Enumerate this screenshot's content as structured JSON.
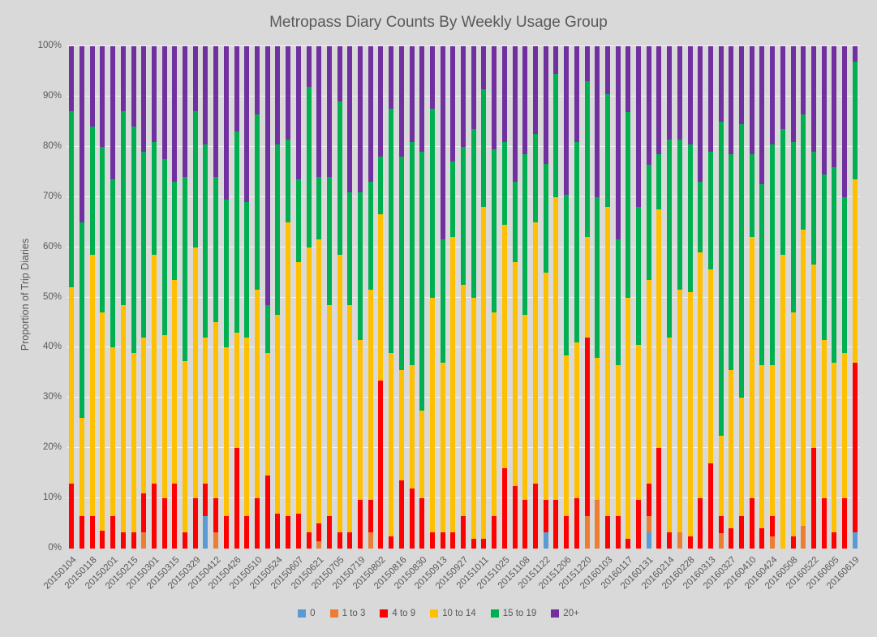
{
  "title": "Metropass Diary Counts By Weekly Usage Group",
  "y_axis": {
    "title": "Proportion of Trip Diaries",
    "ticks": [
      "0%",
      "10%",
      "20%",
      "30%",
      "40%",
      "50%",
      "60%",
      "70%",
      "80%",
      "90%",
      "100%"
    ]
  },
  "legend": [
    {
      "label": "0",
      "color": "#5B9BD5"
    },
    {
      "label": "1 to 3",
      "color": "#ED7D31"
    },
    {
      "label": "4 to 9",
      "color": "#FF0000"
    },
    {
      "label": "10 to 14",
      "color": "#FFC000"
    },
    {
      "label": "15 to 19",
      "color": "#00B050"
    },
    {
      "label": "20+",
      "color": "#7030A0"
    }
  ],
  "colors": {
    "background": "#D9D9D9",
    "gridline": "#FFFFFF",
    "text": "#595959"
  },
  "chart_data": {
    "type": "bar",
    "stacked": true,
    "units": "percent",
    "ylim": [
      0,
      100
    ],
    "grid": true,
    "legend_position": "bottom",
    "x_label_rotation": -45,
    "x_labels_every": 2,
    "categories": [
      "20150104",
      "20150111",
      "20150118",
      "20150125",
      "20150201",
      "20150208",
      "20150215",
      "20150222",
      "20150301",
      "20150308",
      "20150315",
      "20150322",
      "20150329",
      "20150405",
      "20150412",
      "20150419",
      "20150426",
      "20150503",
      "20150510",
      "20150517",
      "20150524",
      "20150531",
      "20150607",
      "20150614",
      "20150621",
      "20150628",
      "20150705",
      "20150712",
      "20150719",
      "20150726",
      "20150802",
      "20150809",
      "20150816",
      "20150823",
      "20150830",
      "20150906",
      "20150913",
      "20150920",
      "20150927",
      "20151004",
      "20151011",
      "20151018",
      "20151025",
      "20151101",
      "20151108",
      "20151115",
      "20151122",
      "20151129",
      "20151206",
      "20151213",
      "20151220",
      "20151227",
      "20160103",
      "20160110",
      "20160117",
      "20160124",
      "20160131",
      "20160207",
      "20160214",
      "20160221",
      "20160228",
      "20160306",
      "20160313",
      "20160320",
      "20160327",
      "20160403",
      "20160410",
      "20160417",
      "20160424",
      "20160501",
      "20160508",
      "20160515",
      "20160522",
      "20160529",
      "20160605",
      "20160612",
      "20160619"
    ],
    "series": [
      {
        "name": "0",
        "color": "#5B9BD5",
        "values": [
          0,
          0,
          0,
          0,
          0,
          0,
          0,
          0,
          0,
          0,
          0,
          0,
          0,
          6.5,
          0,
          0,
          0,
          0,
          0,
          0,
          0,
          0,
          0,
          0,
          0,
          0,
          0,
          0,
          0,
          0,
          0,
          0,
          0,
          0,
          0,
          0,
          0,
          0,
          0,
          0,
          0,
          0,
          0,
          0,
          0,
          0,
          3.2,
          0,
          0,
          0,
          0,
          0,
          0,
          0,
          0,
          0,
          3.2,
          0,
          0,
          0,
          0,
          0,
          0,
          0,
          0,
          0,
          0,
          0,
          0,
          0,
          0,
          0,
          0,
          0,
          0,
          0,
          3.2
        ]
      },
      {
        "name": "1 to 3",
        "color": "#ED7D31",
        "values": [
          0,
          0,
          0,
          0,
          0,
          0,
          0,
          3.2,
          0,
          0,
          0,
          0,
          0,
          0,
          3.2,
          0,
          0,
          0,
          0,
          0,
          0,
          0,
          0,
          0,
          1.5,
          0,
          0,
          0,
          0,
          3.2,
          0,
          0,
          0,
          0,
          0,
          0,
          0,
          0,
          0,
          0,
          0,
          0,
          0,
          0,
          0,
          0,
          0,
          0,
          0,
          0,
          6.5,
          9.7,
          0,
          0,
          0,
          0,
          3.3,
          0,
          0,
          3.2,
          0,
          0,
          0,
          3,
          0,
          0,
          0,
          0,
          2.5,
          0,
          0,
          4.5,
          0,
          0,
          0,
          0,
          0
        ]
      },
      {
        "name": "4 to 9",
        "color": "#FF0000",
        "values": [
          13,
          6.5,
          6.5,
          3.5,
          6.5,
          3.2,
          3.2,
          7.8,
          13,
          10,
          13,
          3.2,
          10,
          6.5,
          6.8,
          6.5,
          20,
          6.5,
          10,
          14.5,
          7,
          6.5,
          7,
          3.2,
          3.5,
          6.5,
          3.2,
          3.2,
          9.7,
          6.5,
          33.5,
          2.5,
          13.5,
          12,
          10,
          3.2,
          3.2,
          3.2,
          6.5,
          2,
          2,
          6.5,
          16,
          12.5,
          9.7,
          13,
          6.5,
          9.7,
          6.5,
          10,
          35.5,
          0,
          6.5,
          6.5,
          2,
          9.7,
          6.5,
          20,
          3.2,
          0,
          2.5,
          10,
          17,
          3.5,
          4,
          6.5,
          10,
          4,
          4,
          0,
          2.5,
          0,
          20,
          10,
          3.2,
          10,
          33.8
        ]
      },
      {
        "name": "10 to 14",
        "color": "#FFC000",
        "values": [
          39,
          19.5,
          52,
          43.5,
          33.5,
          45.3,
          35.8,
          31,
          45.5,
          32.5,
          40.5,
          34.1,
          50,
          29,
          35,
          33.5,
          23,
          35.5,
          41.5,
          24.5,
          39.5,
          58.5,
          50,
          56.8,
          56.5,
          42,
          55.3,
          45.3,
          31.8,
          41.8,
          33,
          36.5,
          22,
          24.5,
          17.5,
          46.8,
          33.8,
          58.8,
          46,
          48,
          66,
          40.5,
          48.5,
          44.5,
          36.8,
          52,
          45.3,
          60.3,
          32,
          31,
          20,
          28.3,
          61.5,
          30,
          48,
          30.8,
          40.5,
          47.5,
          38.8,
          48.3,
          48.5,
          49,
          38.5,
          16,
          31.5,
          23.5,
          52,
          32.5,
          30,
          58.5,
          44.5,
          59,
          36.5,
          31.5,
          33.8,
          29,
          36.5
        ]
      },
      {
        "name": "15 to 19",
        "color": "#00B050",
        "values": [
          35,
          39,
          25.5,
          33,
          33.5,
          38.5,
          45,
          37,
          22.5,
          35,
          19.5,
          36.7,
          27,
          38.5,
          29,
          29.5,
          40,
          27,
          35,
          9.5,
          34,
          16.5,
          16.5,
          32,
          12.5,
          25.5,
          30.5,
          22.5,
          29.5,
          21.5,
          11.5,
          48.5,
          42.5,
          44.5,
          51.5,
          37.5,
          24.5,
          15,
          27.5,
          33.5,
          23.5,
          32.5,
          16.5,
          16,
          32,
          17.5,
          21.5,
          24.5,
          32,
          40,
          31,
          32,
          22.5,
          25,
          37,
          27.5,
          23,
          11,
          39.5,
          30,
          29.5,
          14,
          23.5,
          62.5,
          43,
          54.5,
          16.5,
          36,
          44,
          25,
          34,
          23,
          22.5,
          33,
          39,
          31,
          23.5
        ]
      },
      {
        "name": "20+",
        "color": "#7030A0",
        "values": [
          13,
          35,
          16,
          20,
          26.5,
          13,
          16,
          21,
          19,
          22.5,
          27,
          26,
          13,
          19.5,
          26,
          30.5,
          17,
          31,
          13.5,
          51.5,
          19.5,
          18.5,
          26.5,
          8,
          26,
          26,
          11,
          29,
          29,
          27,
          22,
          12.5,
          22,
          19,
          21,
          12.5,
          38.5,
          23,
          20,
          16.5,
          8.5,
          20.5,
          19,
          27,
          21.5,
          17.5,
          23.5,
          5.5,
          29.5,
          19,
          7,
          30,
          9.5,
          38.5,
          13,
          32,
          23.5,
          21.5,
          18.5,
          18.5,
          19.5,
          27,
          21,
          15,
          21.5,
          15.5,
          21.5,
          27.5,
          19.5,
          16.5,
          19,
          13.5,
          21,
          25.5,
          24,
          30,
          3
        ]
      }
    ]
  }
}
